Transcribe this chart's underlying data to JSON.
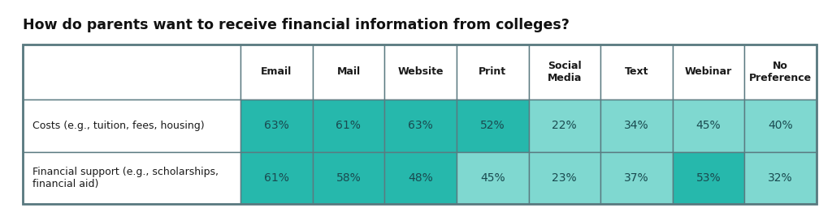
{
  "title": "How do parents want to receive financial information from colleges?",
  "col_headers": [
    "Email",
    "Mail",
    "Website",
    "Print",
    "Social\nMedia",
    "Text",
    "Webinar",
    "No\nPreference"
  ],
  "row_labels": [
    "Costs (e.g., tuition, fees, housing)",
    "Financial support (e.g., scholarships,\nfinancial aid)"
  ],
  "values": [
    [
      "63%",
      "61%",
      "63%",
      "52%",
      "22%",
      "34%",
      "45%",
      "40%"
    ],
    [
      "61%",
      "58%",
      "48%",
      "45%",
      "23%",
      "37%",
      "53%",
      "32%"
    ]
  ],
  "numeric_values": [
    [
      63,
      61,
      63,
      52,
      22,
      34,
      45,
      40
    ],
    [
      61,
      58,
      48,
      45,
      23,
      37,
      53,
      32
    ]
  ],
  "dark_teal": "#26B8AC",
  "light_teal": "#7FD8D0",
  "border_color": "#5a7a80",
  "title_color": "#111111",
  "text_color": "#1a4a50",
  "header_text_color": "#1a1a1a",
  "bg_color": "#ffffff",
  "threshold": 46,
  "title_fontsize": 12.5,
  "cell_fontsize": 10,
  "header_fontsize": 9,
  "row_label_fontsize": 9
}
